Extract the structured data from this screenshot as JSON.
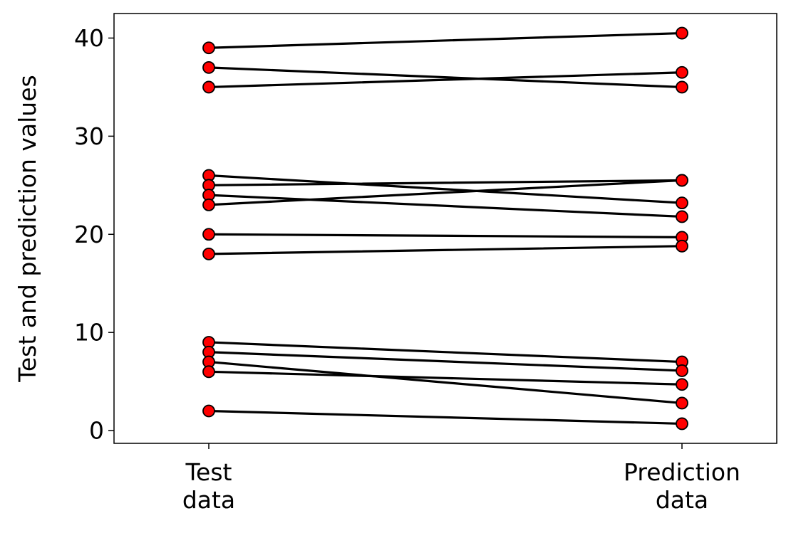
{
  "chart_data": {
    "type": "line",
    "title": "",
    "xlabel": "",
    "ylabel": "Test and prediction values",
    "categories": [
      "Test\ndata",
      "Prediction\ndata"
    ],
    "y_ticks": [
      0,
      10,
      20,
      30,
      40
    ],
    "ylim": [
      -1.3,
      42.5
    ],
    "grid": false,
    "legend": "none",
    "colors": {
      "line": "#000000",
      "marker_fill": "#ff0000",
      "marker_edge": "#000000"
    },
    "pairs": [
      {
        "test": 39,
        "prediction": 40.5
      },
      {
        "test": 37,
        "prediction": 35
      },
      {
        "test": 35,
        "prediction": 36.5
      },
      {
        "test": 26,
        "prediction": 23.2
      },
      {
        "test": 25,
        "prediction": 25.5
      },
      {
        "test": 24,
        "prediction": 21.8
      },
      {
        "test": 23,
        "prediction": 25.5
      },
      {
        "test": 20,
        "prediction": 19.7
      },
      {
        "test": 18,
        "prediction": 18.8
      },
      {
        "test": 9,
        "prediction": 7
      },
      {
        "test": 8,
        "prediction": 6.1
      },
      {
        "test": 7,
        "prediction": 2.8
      },
      {
        "test": 6,
        "prediction": 4.7
      },
      {
        "test": 2,
        "prediction": 0.7
      }
    ]
  }
}
